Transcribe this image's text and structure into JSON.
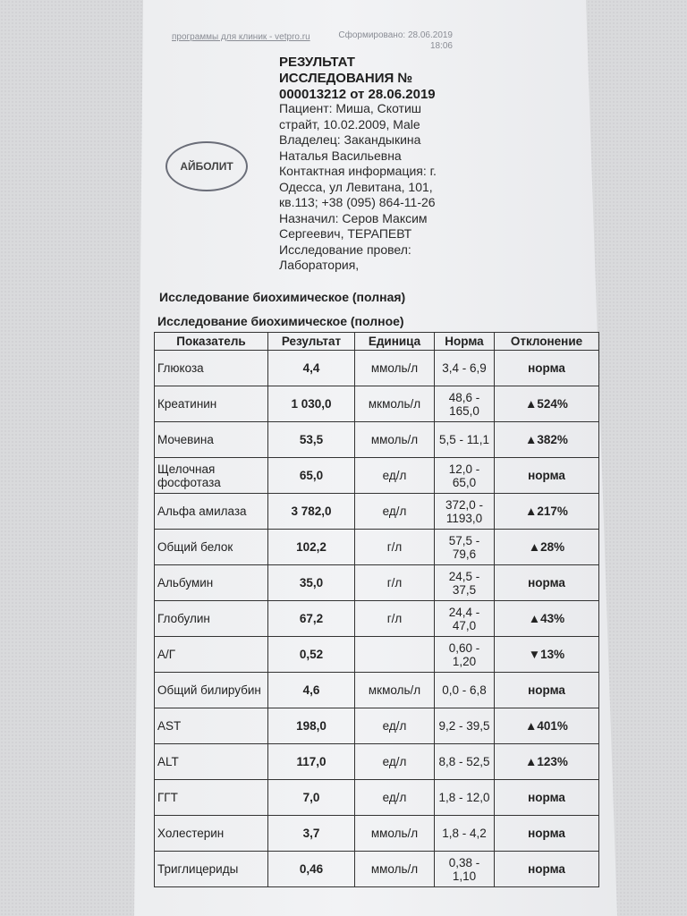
{
  "header": {
    "link": "программы для клиник - vetpro.ru",
    "formed": "Сформировано: 28.06.2019",
    "formed_time": "18:06"
  },
  "title": [
    "РЕЗУЛЬТАТ",
    "ИССЛЕДОВАНИЯ №",
    "000013212 от 28.06.2019"
  ],
  "info": [
    "Пациент: Миша, Скотиш",
    "страйт, 10.02.2009, Male",
    "Владелец: Закандыкина",
    "Наталья Васильевна",
    "Контактная информация: г.",
    "Одесса, ул Левитана, 101,",
    "кв.113; +38 (095) 864-11-26",
    "Назначил: Серов Максим",
    "Сергеевич, ТЕРАПЕВТ",
    "Исследование провел:",
    "Лаборатория,"
  ],
  "logo": "АЙБОЛИТ",
  "section": "Исследование биохимическое (полная)",
  "subsection": "Исследование биохимическое (полное)",
  "table": {
    "headers": [
      "Показатель",
      "Результат",
      "Единица",
      "Норма",
      "Отклонение"
    ],
    "rows": [
      [
        "Глюкоза",
        "4,4",
        "ммоль/л",
        "3,4 - 6,9",
        "норма"
      ],
      [
        "Креатинин",
        "1 030,0",
        "мкмоль/л",
        "48,6 - 165,0",
        "▲524%"
      ],
      [
        "Мочевина",
        "53,5",
        "ммоль/л",
        "5,5 - 11,1",
        "▲382%"
      ],
      [
        "Щелочная фосфотаза",
        "65,0",
        "ед/л",
        "12,0 - 65,0",
        "норма"
      ],
      [
        "Альфа амилаза",
        "3 782,0",
        "ед/л",
        "372,0 - 1193,0",
        "▲217%"
      ],
      [
        "Общий белок",
        "102,2",
        "г/л",
        "57,5 - 79,6",
        "▲28%"
      ],
      [
        "Альбумин",
        "35,0",
        "г/л",
        "24,5 - 37,5",
        "норма"
      ],
      [
        "Глобулин",
        "67,2",
        "г/л",
        "24,4 - 47,0",
        "▲43%"
      ],
      [
        "А/Г",
        "0,52",
        "",
        "0,60 - 1,20",
        "▼13%"
      ],
      [
        "Общий билирубин",
        "4,6",
        "мкмоль/л",
        "0,0 - 6,8",
        "норма"
      ],
      [
        "AST",
        "198,0",
        "ед/л",
        "9,2 - 39,5",
        "▲401%"
      ],
      [
        "ALT",
        "117,0",
        "ед/л",
        "8,8 - 52,5",
        "▲123%"
      ],
      [
        "ГГТ",
        "7,0",
        "ед/л",
        "1,8 - 12,0",
        "норма"
      ],
      [
        "Холестерин",
        "3,7",
        "ммоль/л",
        "1,8 - 4,2",
        "норма"
      ],
      [
        "Триглицериды",
        "0,46",
        "ммоль/л",
        "0,38 - 1,10",
        "норма"
      ]
    ]
  }
}
